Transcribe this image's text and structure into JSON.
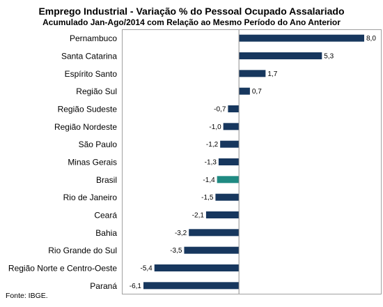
{
  "chart_data": {
    "type": "bar",
    "orientation": "horizontal",
    "title": "Emprego Industrial - Variação % do Pessoal Ocupado Assalariado",
    "subtitle": "Acumulado Jan-Ago/2014 com Relação ao Mesmo Período do Ano Anterior",
    "categories": [
      "Pernambuco",
      "Santa Catarina",
      "Espírito Santo",
      "Região Sul",
      "Região Sudeste",
      "Região Nordeste",
      "São Paulo",
      "Minas Gerais",
      "Brasil",
      "Rio de Janeiro",
      "Ceará",
      "Bahia",
      "Rio Grande do Sul",
      "Região Norte e Centro-Oeste",
      "Paraná"
    ],
    "values": [
      8.0,
      5.3,
      1.7,
      0.7,
      -0.7,
      -1.0,
      -1.2,
      -1.3,
      -1.4,
      -1.5,
      -2.1,
      -3.2,
      -3.5,
      -5.4,
      -6.1
    ],
    "value_labels": [
      "8,0",
      "5,3",
      "1,7",
      "0,7",
      "-0,7",
      "-1,0",
      "-1,2",
      "-1,3",
      "-1,4",
      "-1,5",
      "-2,1",
      "-3,2",
      "-3,5",
      "-5,4",
      "-6,1"
    ],
    "highlight_category": "Brasil",
    "xlim": [
      -6.1,
      8.0
    ],
    "grid": false,
    "legend": "none",
    "colors": {
      "bar": "#17375e",
      "highlight": "#1f8a82",
      "axis": "#8c8c8c",
      "border": "#a0a0a0"
    },
    "source": "Fonte: IBGE."
  }
}
